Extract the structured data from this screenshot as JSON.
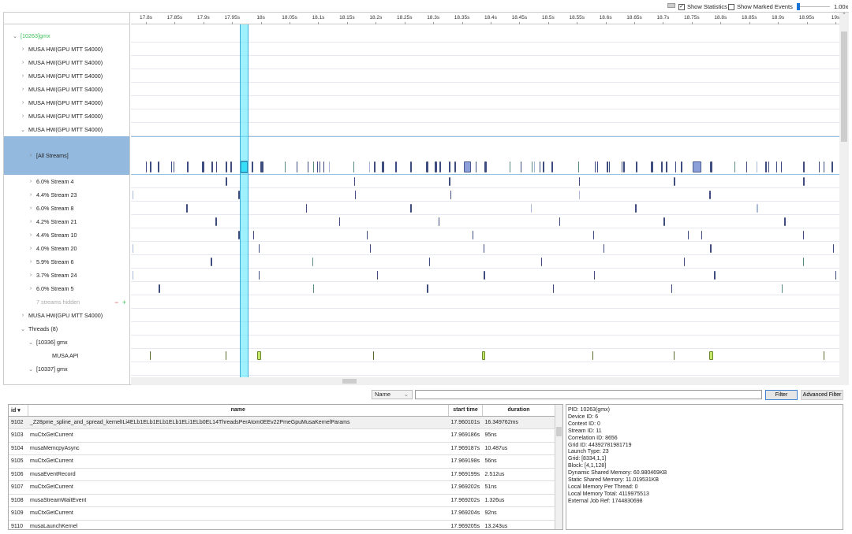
{
  "toolbar": {
    "show_statistics": "Show Statistics",
    "show_statistics_checked": true,
    "show_marked_events": "Show Marked Events",
    "show_marked_checked": false,
    "zoom_label": "1.00x",
    "zoom_fraction": 0.0
  },
  "ruler": {
    "ticks": [
      "17.8s",
      "17.85s",
      "17.9s",
      "17.95s",
      "18s",
      "18.05s",
      "18.1s",
      "18.15s",
      "18.2s",
      "18.25s",
      "18.3s",
      "18.35s",
      "18.4s",
      "18.45s",
      "18.5s",
      "18.55s",
      "18.6s",
      "18.65s",
      "18.7s",
      "18.75s",
      "18.8s",
      "18.85s",
      "18.9s",
      "18.95s",
      "19s"
    ],
    "start_s": 17.8,
    "end_s": 19.0
  },
  "selection": {
    "start_s": 17.963,
    "end_s": 17.979
  },
  "tree": [
    {
      "label": "[10263]gmx",
      "indent": 1,
      "exp": "v",
      "color": "#3cbf5a"
    },
    {
      "label": "MUSA HW(GPU MTT S4000)",
      "indent": 2,
      "exp": ">"
    },
    {
      "label": "MUSA HW(GPU MTT S4000)",
      "indent": 2,
      "exp": ">"
    },
    {
      "label": "MUSA HW(GPU MTT S4000)",
      "indent": 2,
      "exp": ">"
    },
    {
      "label": "MUSA HW(GPU MTT S4000)",
      "indent": 2,
      "exp": ">"
    },
    {
      "label": "MUSA HW(GPU MTT S4000)",
      "indent": 2,
      "exp": ">"
    },
    {
      "label": "MUSA HW(GPU MTT S4000)",
      "indent": 2,
      "exp": ">"
    },
    {
      "label": "MUSA HW(GPU MTT S4000)",
      "indent": 2,
      "exp": "v"
    },
    {
      "label": "[All Streams]",
      "indent": 3,
      "exp": ">",
      "tall": true,
      "selected": true,
      "marks": [
        [
          17.8,
          2
        ],
        [
          17.807,
          2
        ],
        [
          17.821,
          3
        ],
        [
          17.844,
          2
        ],
        [
          17.848,
          2
        ],
        [
          17.871,
          3
        ],
        [
          17.897,
          4
        ],
        [
          17.914,
          3
        ],
        [
          17.922,
          2
        ],
        [
          17.939,
          3
        ],
        [
          17.947,
          2
        ],
        [
          17.963,
          16,
          "sel"
        ],
        [
          17.984,
          3
        ],
        [
          17.999,
          5
        ],
        [
          18.042,
          1,
          "t"
        ],
        [
          18.062,
          1
        ],
        [
          18.081,
          2
        ],
        [
          18.091,
          1,
          "t"
        ],
        [
          18.098,
          1
        ],
        [
          18.102,
          2
        ],
        [
          18.109,
          1
        ],
        [
          18.119,
          1,
          "l"
        ],
        [
          18.161,
          2,
          "t"
        ],
        [
          18.189,
          1,
          "l"
        ],
        [
          18.197,
          2
        ],
        [
          18.211,
          3
        ],
        [
          18.234,
          3
        ],
        [
          18.26,
          3
        ],
        [
          18.287,
          4
        ],
        [
          18.303,
          3
        ],
        [
          18.311,
          2
        ],
        [
          18.327,
          3
        ],
        [
          18.337,
          2
        ],
        [
          18.353,
          13,
          "box"
        ],
        [
          18.374,
          2
        ],
        [
          18.389,
          4
        ],
        [
          18.433,
          1,
          "t"
        ],
        [
          18.452,
          1
        ],
        [
          18.471,
          1,
          "t"
        ],
        [
          18.476,
          1,
          "l"
        ],
        [
          18.485,
          2
        ],
        [
          18.491,
          2
        ],
        [
          18.506,
          2
        ],
        [
          18.552,
          2,
          "t"
        ],
        [
          18.581,
          2
        ],
        [
          18.585,
          2
        ],
        [
          18.602,
          2
        ],
        [
          18.606,
          2
        ],
        [
          18.628,
          2
        ],
        [
          18.631,
          2
        ],
        [
          18.653,
          3
        ],
        [
          18.679,
          4
        ],
        [
          18.697,
          3
        ],
        [
          18.705,
          3
        ],
        [
          18.721,
          2
        ],
        [
          18.731,
          2
        ],
        [
          18.751,
          15,
          "box"
        ],
        [
          18.782,
          4
        ],
        [
          18.824,
          1,
          "t"
        ],
        [
          18.845,
          1
        ],
        [
          18.863,
          1,
          "l"
        ],
        [
          18.878,
          2
        ],
        [
          18.883,
          1
        ],
        [
          18.897,
          1
        ],
        [
          18.905,
          1
        ],
        [
          18.944,
          3
        ],
        [
          18.971,
          2
        ],
        [
          18.979,
          2
        ],
        [
          18.993,
          3
        ]
      ]
    },
    {
      "label": "6.0% Stream 4",
      "indent": 3,
      "exp": ">",
      "marks": [
        [
          17.939,
          3
        ],
        [
          18.162,
          1
        ],
        [
          18.327,
          3
        ],
        [
          18.554,
          1
        ],
        [
          18.719,
          3
        ],
        [
          18.944,
          2
        ]
      ]
    },
    {
      "label": "4.4% Stream 23",
      "indent": 3,
      "exp": ">",
      "marks": [
        [
          17.777,
          1,
          "l"
        ],
        [
          17.961,
          2
        ],
        [
          18.164,
          1
        ],
        [
          18.33,
          1
        ],
        [
          18.554,
          1,
          "l"
        ],
        [
          18.78,
          3
        ]
      ]
    },
    {
      "label": "6.0% Stream 8",
      "indent": 3,
      "exp": ">",
      "marks": [
        [
          17.87,
          3
        ],
        [
          18.079,
          1
        ],
        [
          18.26,
          3
        ],
        [
          18.47,
          1,
          "l"
        ],
        [
          18.651,
          3
        ],
        [
          18.863,
          2,
          "l"
        ]
      ]
    },
    {
      "label": "4.2% Stream 21",
      "indent": 3,
      "exp": ">",
      "marks": [
        [
          17.921,
          2
        ],
        [
          18.136,
          1
        ],
        [
          18.309,
          2
        ],
        [
          18.519,
          1
        ],
        [
          18.701,
          2
        ],
        [
          18.911,
          2
        ]
      ]
    },
    {
      "label": "4.4% Stream 10",
      "indent": 3,
      "exp": ">",
      "marks": [
        [
          17.961,
          2
        ],
        [
          17.987,
          1
        ],
        [
          18.184,
          1
        ],
        [
          18.368,
          1
        ],
        [
          18.579,
          1
        ],
        [
          18.743,
          1
        ],
        [
          18.767,
          1
        ],
        [
          18.944,
          1
        ]
      ]
    },
    {
      "label": "4.0% Stream 20",
      "indent": 3,
      "exp": ">",
      "marks": [
        [
          17.777,
          1,
          "l"
        ],
        [
          17.996,
          1
        ],
        [
          18.19,
          1
        ],
        [
          18.388,
          1
        ],
        [
          18.596,
          1
        ],
        [
          18.782,
          3
        ],
        [
          18.996,
          1
        ]
      ]
    },
    {
      "label": "5.9% Stream 6",
      "indent": 3,
      "exp": ">",
      "marks": [
        [
          17.913,
          3
        ],
        [
          18.09,
          1,
          "t"
        ],
        [
          18.293,
          1
        ],
        [
          18.488,
          1
        ],
        [
          18.736,
          2
        ],
        [
          18.944,
          1,
          "t"
        ]
      ]
    },
    {
      "label": "3.7% Stream 24",
      "indent": 3,
      "exp": ">",
      "marks": [
        [
          17.777,
          1,
          "l"
        ],
        [
          17.996,
          2
        ],
        [
          18.202,
          1
        ],
        [
          18.388,
          2
        ],
        [
          18.58,
          1
        ],
        [
          18.789,
          2
        ],
        [
          19.0,
          1
        ]
      ]
    },
    {
      "label": "6.0% Stream 5",
      "indent": 3,
      "exp": ">",
      "marks": [
        [
          17.822,
          3
        ],
        [
          18.091,
          1,
          "t"
        ],
        [
          18.289,
          2
        ],
        [
          18.508,
          1
        ],
        [
          18.714,
          1
        ],
        [
          18.907,
          1,
          "t"
        ]
      ]
    },
    {
      "label": "7 streams hidden",
      "indent": 3,
      "exp": "",
      "hidden_row": true,
      "minus": "−",
      "plus": "+"
    },
    {
      "label": "MUSA HW(GPU MTT S4000)",
      "indent": 2,
      "exp": ">"
    },
    {
      "label": "Threads (8)",
      "indent": 2,
      "exp": "v"
    },
    {
      "label": "[10336] gmx",
      "indent": 3,
      "exp": "v"
    },
    {
      "label": "MUSA API",
      "indent": 5,
      "exp": "",
      "marks": [
        [
          17.807,
          1,
          "g"
        ],
        [
          17.939,
          1,
          "g"
        ],
        [
          17.994,
          7,
          "lime"
        ],
        [
          18.195,
          1,
          "g"
        ],
        [
          18.385,
          5,
          "lime"
        ],
        [
          18.577,
          1,
          "g"
        ],
        [
          18.719,
          1,
          "g"
        ],
        [
          18.78,
          7,
          "lime"
        ],
        [
          18.979,
          1,
          "g"
        ]
      ]
    },
    {
      "label": "[10337] gmx",
      "indent": 3,
      "exp": "v"
    }
  ],
  "filter": {
    "field": "Name",
    "value": "",
    "filter_label": "Filter",
    "advanced_label": "Advanced Filter"
  },
  "table": {
    "headers": [
      "id",
      "name",
      "start time",
      "duration"
    ],
    "rows": [
      [
        "9102",
        "_Z28pme_spline_and_spread_kernelILi4ELb1ELb1ELb1ELb1ELi1ELb0EL14ThreadsPerAtom0EEv22PmeGpuMusaKernelParams",
        "17.960101s",
        "16.349762ms"
      ],
      [
        "9103",
        "muCtxGetCurrent",
        "17.969186s",
        "95ns"
      ],
      [
        "9104",
        "musaMemcpyAsync",
        "17.969187s",
        "10.487us"
      ],
      [
        "9105",
        "muCtxGetCurrent",
        "17.969198s",
        "56ns"
      ],
      [
        "9106",
        "musaEventRecord",
        "17.969199s",
        "2.512us"
      ],
      [
        "9107",
        "muCtxGetCurrent",
        "17.969202s",
        "51ns"
      ],
      [
        "9108",
        "musaStreamWaitEvent",
        "17.969202s",
        "1.326us"
      ],
      [
        "9109",
        "muCtxGetCurrent",
        "17.969204s",
        "92ns"
      ],
      [
        "9110",
        "musaLaunchKernel",
        "17.969205s",
        "13.243us"
      ]
    ]
  },
  "details": [
    "PID: 10263(gmx)",
    "Device ID: 6",
    "Context ID: 0",
    "Stream ID: 11",
    "Correlation ID: 8656",
    "Grid ID: 44392781981719",
    "Launch Type: 23",
    "Grid: [8334,1,1]",
    "Block: [4,1,128]",
    "Dynamic Shared Memory: 60.980469KB",
    "Static Shared Memory: 11.019531KB",
    "Local Memory Per Thread: 0",
    "Local Memory Total: 4119975513",
    "External Job Ref: 1744830698"
  ],
  "colors": {
    "mark": "#3f4c7e",
    "teal": "#5a8a86",
    "light": "#a9b8d8",
    "select": "#50e6ff",
    "lime": "#c6e86a",
    "row_selected": "#94b9de"
  }
}
